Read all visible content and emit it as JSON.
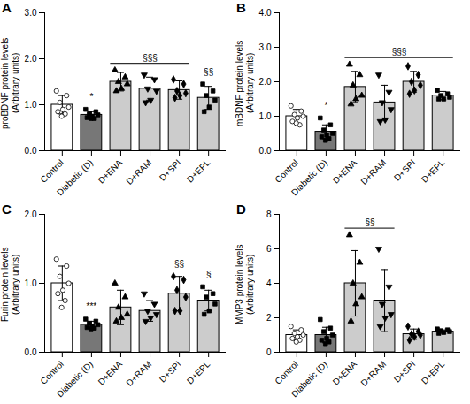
{
  "chart_data": [
    {
      "type": "bar",
      "title": "A",
      "ylabel": [
        "proBDNF protein levels",
        "(Arbitrary units)"
      ],
      "categories": [
        "Control",
        "Diabetic (D)",
        "D+ENA",
        "D+RAM",
        "D+SPI",
        "D+EPL"
      ],
      "values": [
        1.0,
        0.78,
        1.5,
        1.35,
        1.32,
        1.15
      ],
      "errors": [
        0.2,
        0.07,
        0.2,
        0.25,
        0.2,
        0.25
      ],
      "points": [
        [
          1.3,
          1.2,
          1.05,
          0.95,
          0.9,
          0.85,
          0.8,
          0.75
        ],
        [
          0.9,
          0.85,
          0.8,
          0.78,
          0.75,
          0.72,
          0.7,
          0.7
        ],
        [
          1.75,
          1.6,
          1.5,
          1.45,
          1.35,
          1.3
        ],
        [
          1.65,
          1.55,
          1.35,
          1.3,
          1.1,
          1.05
        ],
        [
          1.55,
          1.45,
          1.3,
          1.25,
          1.2,
          1.15
        ],
        [
          1.45,
          1.3,
          1.2,
          1.1,
          0.95,
          0.85
        ]
      ],
      "colors": [
        "#ffffff",
        "#777777",
        "#cccccc",
        "#cccccc",
        "#cccccc",
        "#cccccc"
      ],
      "ylim": [
        0,
        3
      ],
      "yticks": [
        0,
        1,
        2,
        3
      ],
      "annotations": [
        {
          "text": "*",
          "categories": [
            "Diabetic (D)"
          ]
        },
        {
          "text": "§§§",
          "categories": [
            "D+ENA",
            "D+RAM",
            "D+SPI"
          ]
        },
        {
          "text": "§§",
          "categories": [
            "D+EPL"
          ]
        }
      ]
    },
    {
      "type": "bar",
      "title": "B",
      "ylabel": [
        "mBDNF protein levels",
        "(Arbitrary units)"
      ],
      "categories": [
        "Control",
        "Diabetic (D)",
        "D+ENA",
        "D+RAM",
        "D+SPI",
        "D+EPL"
      ],
      "values": [
        1.0,
        0.55,
        1.85,
        1.4,
        2.0,
        1.6
      ],
      "errors": [
        0.2,
        0.2,
        0.45,
        0.5,
        0.3,
        0.12
      ],
      "points": [
        [
          1.3,
          1.15,
          1.05,
          1.0,
          0.95,
          0.85,
          0.75,
          0.8
        ],
        [
          0.95,
          0.75,
          0.6,
          0.5,
          0.45,
          0.4,
          0.35,
          0.3
        ],
        [
          2.5,
          2.2,
          1.9,
          1.6,
          1.5,
          1.35
        ],
        [
          2.2,
          1.7,
          1.4,
          1.2,
          0.9,
          0.85
        ],
        [
          2.45,
          2.2,
          2.0,
          1.9,
          1.75,
          1.65
        ],
        [
          1.75,
          1.65,
          1.6,
          1.55,
          1.5,
          1.5
        ]
      ],
      "colors": [
        "#ffffff",
        "#777777",
        "#cccccc",
        "#cccccc",
        "#cccccc",
        "#cccccc"
      ],
      "ylim": [
        0,
        4
      ],
      "yticks": [
        0,
        1,
        2,
        3,
        4
      ],
      "annotations": [
        {
          "text": "*",
          "categories": [
            "Diabetic (D)"
          ]
        },
        {
          "text": "§§§",
          "categories": [
            "D+ENA",
            "D+RAM",
            "D+SPI",
            "D+EPL"
          ]
        }
      ]
    },
    {
      "type": "bar",
      "title": "C",
      "ylabel": [
        "Furin protein levels",
        "(Arbitrary units)"
      ],
      "categories": [
        "Control",
        "Diabetic (D)",
        "D+ENA",
        "D+RAM",
        "D+SPI",
        "D+EPL"
      ],
      "values": [
        1.0,
        0.4,
        0.65,
        0.6,
        0.85,
        0.75
      ],
      "errors": [
        0.25,
        0.05,
        0.25,
        0.15,
        0.25,
        0.15
      ],
      "points": [
        [
          1.35,
          1.25,
          1.1,
          1.0,
          0.9,
          0.85,
          0.75,
          0.65
        ],
        [
          0.48,
          0.45,
          0.42,
          0.4,
          0.38,
          0.36,
          0.35,
          0.34
        ],
        [
          1.0,
          0.8,
          0.65,
          0.55,
          0.5,
          0.45
        ],
        [
          0.85,
          0.7,
          0.6,
          0.55,
          0.5,
          0.45
        ],
        [
          1.1,
          1.05,
          0.9,
          0.8,
          0.6,
          0.6
        ],
        [
          0.95,
          0.85,
          0.8,
          0.7,
          0.6,
          0.55
        ]
      ],
      "colors": [
        "#ffffff",
        "#777777",
        "#cccccc",
        "#cccccc",
        "#cccccc",
        "#cccccc"
      ],
      "ylim": [
        0,
        2
      ],
      "yticks": [
        0,
        1,
        2
      ],
      "annotations": [
        {
          "text": "***",
          "categories": [
            "Diabetic (D)"
          ]
        },
        {
          "text": "§§",
          "categories": [
            "D+SPI"
          ]
        },
        {
          "text": "§",
          "categories": [
            "D+EPL"
          ]
        }
      ]
    },
    {
      "type": "bar",
      "title": "D",
      "ylabel": [
        "MMP3 protein levels",
        "(Arbitrary units)"
      ],
      "categories": [
        "Control",
        "Diabetic (D)",
        "D+ENA",
        "D+RAM",
        "D+SPI",
        "D+EPL"
      ],
      "values": [
        1.0,
        1.0,
        4.0,
        3.0,
        1.05,
        1.2
      ],
      "errors": [
        0.3,
        0.45,
        1.9,
        1.8,
        0.3,
        0.1
      ],
      "points": [
        [
          1.5,
          1.3,
          1.1,
          1.0,
          0.9,
          0.8,
          0.7,
          0.6
        ],
        [
          1.9,
          1.4,
          1.2,
          1.0,
          0.8,
          0.7,
          0.6,
          0.5
        ],
        [
          6.8,
          5.2,
          4.0,
          3.2,
          2.8,
          1.8
        ],
        [
          6.0,
          3.8,
          2.8,
          2.2,
          2.0,
          1.5
        ],
        [
          1.5,
          1.2,
          1.05,
          1.0,
          0.9,
          0.7
        ],
        [
          1.35,
          1.3,
          1.25,
          1.2,
          1.15,
          1.1
        ]
      ],
      "colors": [
        "#ffffff",
        "#777777",
        "#cccccc",
        "#cccccc",
        "#cccccc",
        "#cccccc"
      ],
      "ylim": [
        0,
        8
      ],
      "yticks": [
        0,
        2,
        4,
        6,
        8
      ],
      "annotations": [
        {
          "text": "§§",
          "categories": [
            "D+ENA",
            "D+RAM"
          ]
        }
      ]
    }
  ]
}
